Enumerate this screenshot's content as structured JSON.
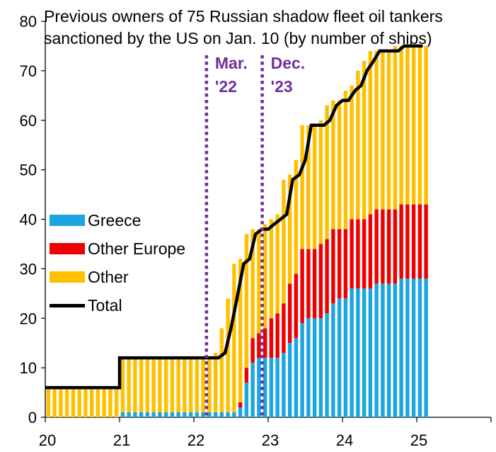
{
  "chart_data": {
    "type": "bar",
    "stacked": true,
    "title": "Previous owners of 75 Russian shadow fleet oil tankers\nsanctioned by the US on Jan. 10 (by number of ships)",
    "x_tick_labels": [
      "20",
      "21",
      "22",
      "23",
      "24",
      "25"
    ],
    "y_tick_labels": [
      "0",
      "10",
      "20",
      "30",
      "40",
      "50",
      "60",
      "70",
      "80"
    ],
    "ylim": [
      0,
      80
    ],
    "x_range": [
      2020.0,
      2026.0
    ],
    "grid": false,
    "legend_position": "center-left",
    "colors": {
      "greece": "#1BA6E0",
      "other_europe": "#EE0000",
      "other": "#FFC000",
      "total": "#000000",
      "annotation": "#7030A0"
    },
    "series": [
      {
        "name": "Greece",
        "color": "#1BA6E0"
      },
      {
        "name": "Other Europe",
        "color": "#EE0000"
      },
      {
        "name": "Other",
        "color": "#FFC000"
      },
      {
        "name": "Total",
        "color": "#000000",
        "type": "line"
      }
    ],
    "monthly": {
      "start": "2020-01",
      "greece": [
        0,
        0,
        0,
        0,
        0,
        0,
        0,
        0,
        0,
        0,
        0,
        0,
        1,
        1,
        1,
        1,
        1,
        1,
        1,
        1,
        1,
        1,
        1,
        1,
        1,
        1,
        1,
        1,
        1,
        1,
        1,
        2,
        7,
        11,
        12,
        12,
        12,
        12,
        13,
        15,
        16,
        19,
        20,
        20,
        20,
        21,
        23,
        24,
        24,
        26,
        26,
        26,
        26,
        27,
        27,
        27,
        27,
        28,
        28,
        28,
        28,
        28
      ],
      "other_europe": [
        0,
        0,
        0,
        0,
        0,
        0,
        0,
        0,
        0,
        0,
        0,
        0,
        0,
        0,
        0,
        0,
        0,
        0,
        0,
        0,
        0,
        0,
        0,
        0,
        0,
        0,
        0,
        0,
        0,
        0,
        0,
        1,
        3,
        5,
        5,
        6,
        8,
        9,
        10,
        12,
        13,
        15,
        14,
        14,
        15,
        15,
        15,
        14,
        14,
        14,
        14,
        14,
        15,
        15,
        15,
        15,
        15,
        15,
        15,
        15,
        15,
        15
      ],
      "total": [
        6,
        6,
        6,
        6,
        6,
        6,
        6,
        6,
        6,
        6,
        6,
        6,
        12,
        12,
        12,
        12,
        12,
        12,
        12,
        12,
        12,
        12,
        12,
        12,
        12,
        12,
        12,
        13,
        18,
        24,
        31,
        32,
        37,
        38,
        38,
        39,
        40,
        41,
        48,
        49,
        52,
        59,
        59,
        59,
        60,
        63,
        64,
        64,
        66,
        67,
        70,
        72,
        74,
        74,
        74,
        74,
        75,
        75,
        75,
        75,
        75,
        75
      ]
    },
    "total_line": {
      "x": [
        2020.0,
        2021.0,
        2021.0,
        2022.25,
        2022.33,
        2022.42,
        2022.5,
        2022.58,
        2022.67,
        2022.75,
        2022.83,
        2022.92,
        2023.0,
        2023.08,
        2023.25,
        2023.33,
        2023.42,
        2023.5,
        2023.58,
        2023.75,
        2023.83,
        2023.92,
        2024.0,
        2024.08,
        2024.17,
        2024.25,
        2024.33,
        2024.42,
        2024.5,
        2024.75,
        2024.83,
        2025.08
      ],
      "y": [
        6,
        6,
        12,
        12,
        12,
        13,
        18,
        24,
        31,
        32,
        37,
        38,
        38,
        39,
        41,
        48,
        49,
        52,
        59,
        59,
        60,
        63,
        64,
        64,
        66,
        67,
        70,
        72,
        74,
        74,
        75,
        75
      ]
    },
    "annotations": [
      {
        "lines": [
          "Mar.",
          "'22"
        ],
        "x": 2022.17
      },
      {
        "lines": [
          "Dec.",
          "'23"
        ],
        "x": 2022.92
      }
    ]
  }
}
